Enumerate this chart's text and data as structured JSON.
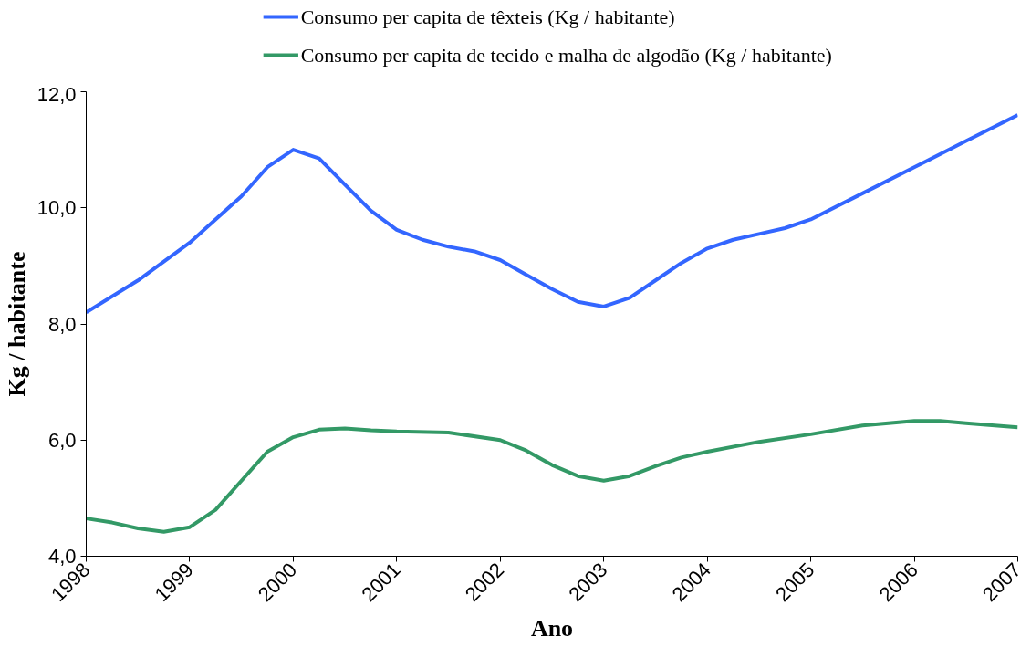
{
  "chart_data": {
    "type": "line",
    "xlabel": "Ano",
    "ylabel": "Kg / habitante",
    "xlim": [
      1998,
      2007
    ],
    "xticks": [
      1998,
      1999,
      2000,
      2001,
      2002,
      2003,
      2004,
      2005,
      2006,
      2007
    ],
    "ylim": [
      4,
      12
    ],
    "yticks": [
      {
        "value": 4,
        "label": "4,0"
      },
      {
        "value": 6,
        "label": "6,0"
      },
      {
        "value": 8,
        "label": "8,0"
      },
      {
        "value": 10,
        "label": "10,0"
      },
      {
        "value": 12,
        "label": "12,0"
      }
    ],
    "grid": false,
    "legend": "top",
    "marker": "none",
    "line_style": "solid",
    "series": [
      {
        "name": "Consumo per capita de têxteis (Kg / habitante)",
        "color": "#3366ff",
        "x": [
          1998,
          1998.5,
          1999,
          1999.5,
          1999.75,
          2000,
          2000.25,
          2000.5,
          2000.75,
          2001,
          2001.25,
          2001.5,
          2001.75,
          2002,
          2002.25,
          2002.5,
          2002.75,
          2003,
          2003.25,
          2003.5,
          2003.75,
          2004,
          2004.25,
          2004.5,
          2004.75,
          2005,
          2005.5,
          2006,
          2006.5,
          2007
        ],
        "values": [
          8.2,
          8.75,
          9.4,
          10.2,
          10.7,
          11.0,
          10.85,
          10.4,
          9.95,
          9.62,
          9.45,
          9.33,
          9.25,
          9.1,
          8.85,
          8.6,
          8.38,
          8.3,
          8.45,
          8.75,
          9.05,
          9.3,
          9.45,
          9.55,
          9.65,
          9.8,
          10.25,
          10.7,
          11.15,
          11.6
        ]
      },
      {
        "name": "Consumo per capita de tecido e malha de algodão (Kg / habitante)",
        "color": "#339966",
        "x": [
          1998,
          1998.25,
          1998.5,
          1998.75,
          1999,
          1999.25,
          1999.5,
          1999.75,
          2000,
          2000.25,
          2000.5,
          2000.75,
          2001,
          2001.5,
          2002,
          2002.25,
          2002.5,
          2002.75,
          2003,
          2003.25,
          2003.5,
          2003.75,
          2004,
          2004.5,
          2005,
          2005.5,
          2006,
          2006.25,
          2006.5,
          2007
        ],
        "values": [
          4.65,
          4.58,
          4.48,
          4.42,
          4.5,
          4.8,
          5.3,
          5.8,
          6.05,
          6.18,
          6.2,
          6.17,
          6.15,
          6.13,
          6.0,
          5.82,
          5.57,
          5.38,
          5.3,
          5.38,
          5.55,
          5.7,
          5.8,
          5.97,
          6.1,
          6.25,
          6.33,
          6.33,
          6.29,
          6.22
        ]
      }
    ]
  }
}
